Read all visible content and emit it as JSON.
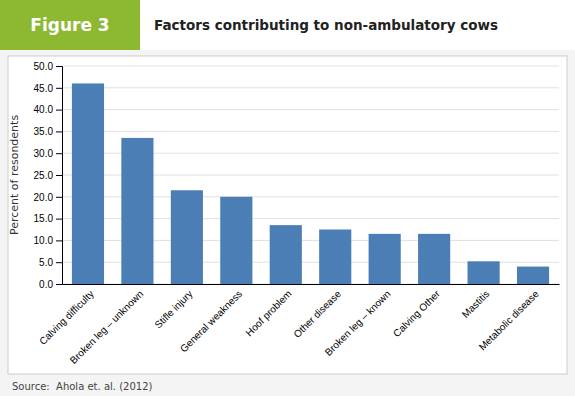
{
  "chart_data": {
    "type": "bar",
    "title": "Factors contributing to non-ambulatory cows",
    "annotations": [
      "Figure 3",
      "Source:  Ahola et. al. (2012)"
    ],
    "categories": [
      "Calving difficulty",
      "Broken leg – unknown",
      "Stifle injury",
      "General weakness",
      "Hoof problem",
      "Other disease",
      "Broken leg – known",
      "Calving Other",
      "Mastitis",
      "Metabolic disease"
    ],
    "values": [
      46.0,
      33.5,
      21.5,
      20.0,
      13.5,
      12.5,
      11.5,
      11.5,
      5.2,
      4.0
    ],
    "color": "#4a7eb5",
    "ylabel": "Percent of resondents",
    "ylim": [
      0,
      50
    ],
    "yticks": [
      {
        "value": 0.0,
        "label": "0.0"
      },
      {
        "value": 5.0,
        "label": "5.0"
      },
      {
        "value": 10.0,
        "label": "10.0"
      },
      {
        "value": 15.0,
        "label": "15.0"
      },
      {
        "value": 20.0,
        "label": "20.0"
      },
      {
        "value": 25.0,
        "label": "25.0"
      },
      {
        "value": 30.0,
        "label": "30.0"
      },
      {
        "value": 35.0,
        "label": "35.0"
      },
      {
        "value": 40.0,
        "label": "40.0"
      },
      {
        "value": 45.0,
        "label": "45.0"
      },
      {
        "value": 50.0,
        "label": "50.0"
      }
    ],
    "grid": true
  }
}
